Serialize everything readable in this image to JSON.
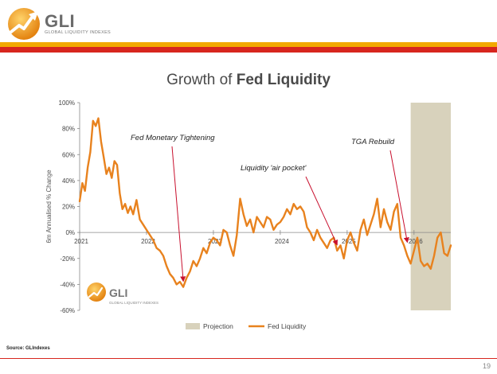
{
  "brand": {
    "name": "GLI",
    "tagline": "GLOBAL LIQUIDITY INDEXES"
  },
  "slide": {
    "title_prefix": "Growth of ",
    "title_bold": "Fed Liquidity",
    "source": "Source: GLIndexes",
    "page_number": "19"
  },
  "colors": {
    "line": "#e8821e",
    "projection": "#d8d2bc",
    "arrow": "#c8102e",
    "band_orange": "#f2a900",
    "band_red": "#d7261e"
  },
  "chart_data": {
    "type": "line",
    "title": "Growth of Fed Liquidity",
    "ylabel": "6m Annualised % Change",
    "ylim": [
      -60,
      100
    ],
    "xlim": [
      2021.0,
      2026.55
    ],
    "y_ticks": [
      -60,
      -40,
      -20,
      0,
      20,
      40,
      60,
      80,
      100
    ],
    "y_tick_labels": [
      "-60%",
      "-40%",
      "-20%",
      "0%",
      "20%",
      "40%",
      "60%",
      "80%",
      "100%"
    ],
    "x_ticks": [
      2021,
      2022,
      2023,
      2024,
      2025,
      2026
    ],
    "x_tick_labels": [
      "2021",
      "2022",
      "2023",
      "2024",
      "2025",
      "2026"
    ],
    "grid": false,
    "legend": [
      "Projection",
      "Fed Liquidity"
    ],
    "projection_range": [
      2025.95,
      2026.55
    ],
    "series": [
      {
        "name": "Fed Liquidity",
        "x": [
          2021.0,
          2021.04,
          2021.08,
          2021.12,
          2021.16,
          2021.2,
          2021.24,
          2021.28,
          2021.32,
          2021.36,
          2021.4,
          2021.44,
          2021.48,
          2021.52,
          2021.56,
          2021.6,
          2021.64,
          2021.68,
          2021.72,
          2021.76,
          2021.8,
          2021.85,
          2021.9,
          2021.95,
          2022.0,
          2022.05,
          2022.1,
          2022.15,
          2022.2,
          2022.25,
          2022.3,
          2022.35,
          2022.4,
          2022.45,
          2022.5,
          2022.55,
          2022.6,
          2022.65,
          2022.7,
          2022.75,
          2022.8,
          2022.85,
          2022.9,
          2022.95,
          2023.0,
          2023.05,
          2023.1,
          2023.15,
          2023.2,
          2023.25,
          2023.3,
          2023.35,
          2023.4,
          2023.45,
          2023.5,
          2023.55,
          2023.6,
          2023.65,
          2023.7,
          2023.75,
          2023.8,
          2023.85,
          2023.9,
          2023.95,
          2024.0,
          2024.05,
          2024.1,
          2024.15,
          2024.2,
          2024.25,
          2024.3,
          2024.35,
          2024.4,
          2024.45,
          2024.5,
          2024.55,
          2024.6,
          2024.65,
          2024.7,
          2024.75,
          2024.8,
          2024.85,
          2024.9,
          2024.95,
          2025.0,
          2025.05,
          2025.1,
          2025.15,
          2025.2,
          2025.25,
          2025.3,
          2025.35,
          2025.4,
          2025.45,
          2025.5,
          2025.55,
          2025.6,
          2025.65,
          2025.7,
          2025.75,
          2025.8,
          2025.85,
          2025.9,
          2025.95,
          2026.0,
          2026.05,
          2026.1,
          2026.15,
          2026.2,
          2026.25,
          2026.3,
          2026.35,
          2026.4,
          2026.45,
          2026.5,
          2026.55
        ],
        "values": [
          24,
          38,
          32,
          50,
          62,
          86,
          82,
          88,
          70,
          58,
          45,
          50,
          42,
          55,
          52,
          30,
          18,
          22,
          15,
          20,
          14,
          25,
          10,
          6,
          2,
          -2,
          -6,
          -12,
          -14,
          -18,
          -26,
          -32,
          -35,
          -40,
          -38,
          -42,
          -35,
          -30,
          -22,
          -26,
          -20,
          -12,
          -16,
          -8,
          -4,
          -6,
          -10,
          2,
          0,
          -10,
          -18,
          -2,
          26,
          14,
          5,
          10,
          0,
          12,
          8,
          4,
          12,
          10,
          2,
          6,
          8,
          12,
          18,
          14,
          22,
          18,
          20,
          16,
          4,
          0,
          -6,
          2,
          -4,
          -8,
          -12,
          -6,
          -4,
          -14,
          -10,
          -20,
          -6,
          0,
          -8,
          -14,
          2,
          10,
          -2,
          6,
          14,
          26,
          4,
          18,
          8,
          2,
          16,
          22,
          -4,
          -10,
          -18,
          -24,
          -14,
          -4,
          -22,
          -26,
          -24,
          -28,
          -18,
          -4,
          0,
          -16,
          -18,
          -10
        ]
      }
    ],
    "annotations": [
      {
        "text": "Fed Monetary Tightening",
        "x": 2022.55,
        "y": -40
      },
      {
        "text": "Liquidity 'air pocket'",
        "x": 2024.85,
        "y": -12
      },
      {
        "text": "TGA Rebuild",
        "x": 2025.9,
        "y": -10
      }
    ]
  }
}
